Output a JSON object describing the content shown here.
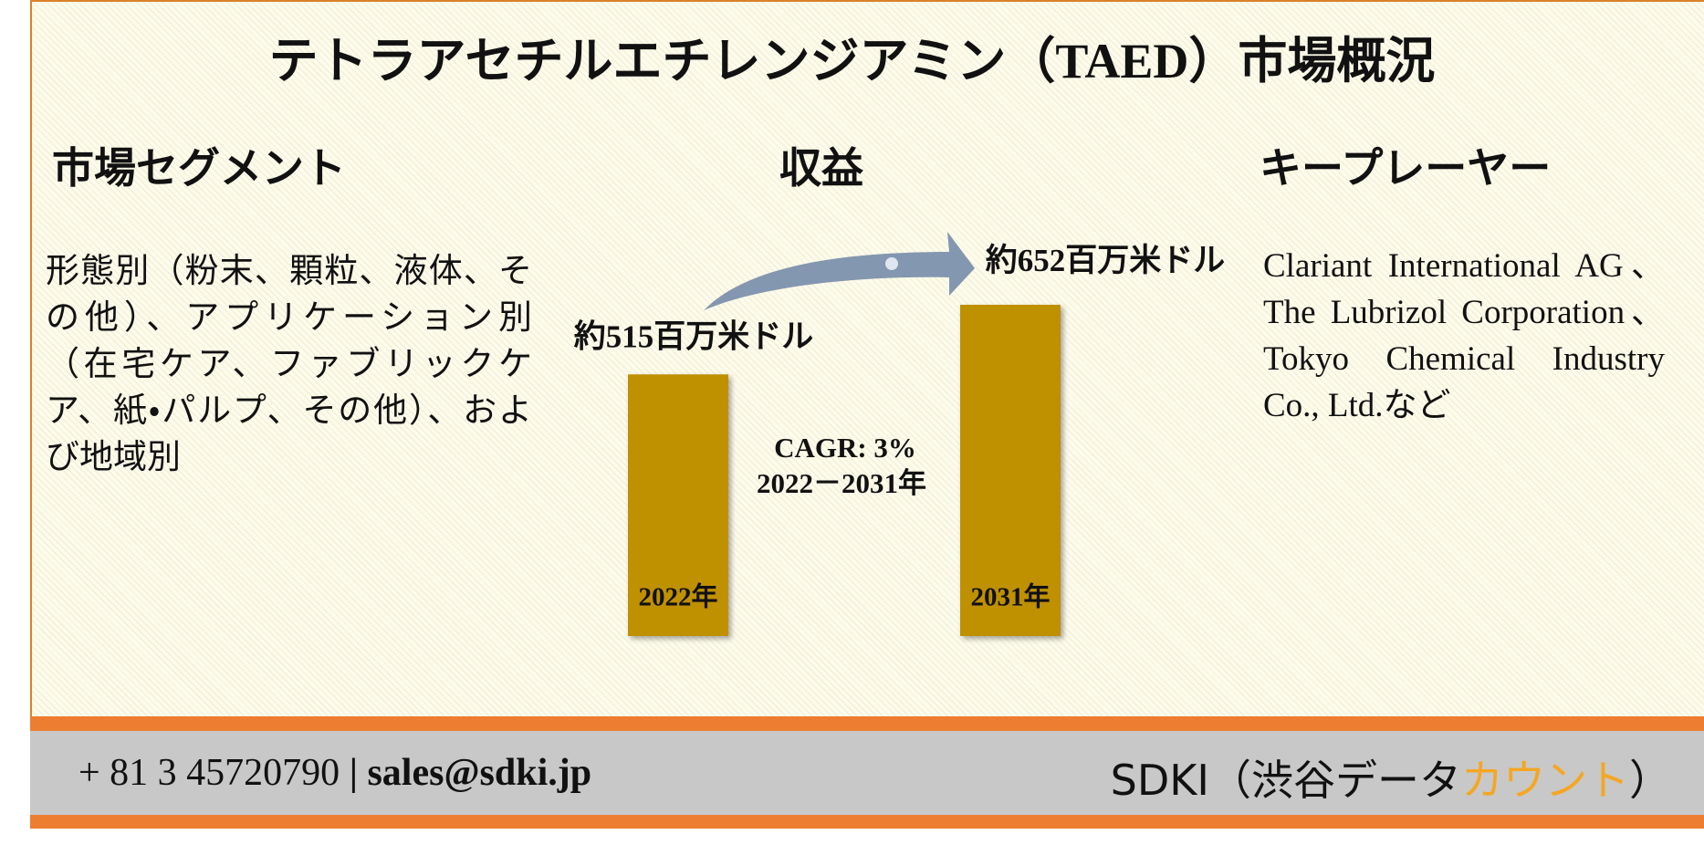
{
  "title": "テトラアセチルエチレンジアミン（TAED）市場概況",
  "segment": {
    "heading": "市場セグメント",
    "text": "形態別（粉末、顆粒、液体、その他）、アプリケーション別（在宅ケア、ファブリックケア、紙・パルプ、その他）、および地域別"
  },
  "revenue": {
    "heading": "収益",
    "bars": [
      {
        "year": "2022年",
        "value": 515,
        "label": "約515百万米ドル"
      },
      {
        "year": "2031年",
        "value": 652,
        "label": "約652百万米ドル"
      }
    ],
    "cagr": "CAGR: 3%",
    "period": "2022－2031年"
  },
  "players": {
    "heading": "キープレーヤー",
    "text": "Clariant International AG、The Lubrizol Corporation、Tokyo Chemical Industry Co., Ltd.など"
  },
  "footer": {
    "phone": "+ 81 3 45720790",
    "separator": "|",
    "email": "sales@sdki.jp",
    "brand": [
      "SDKI（渋谷データ",
      "カウント",
      "）"
    ]
  }
}
